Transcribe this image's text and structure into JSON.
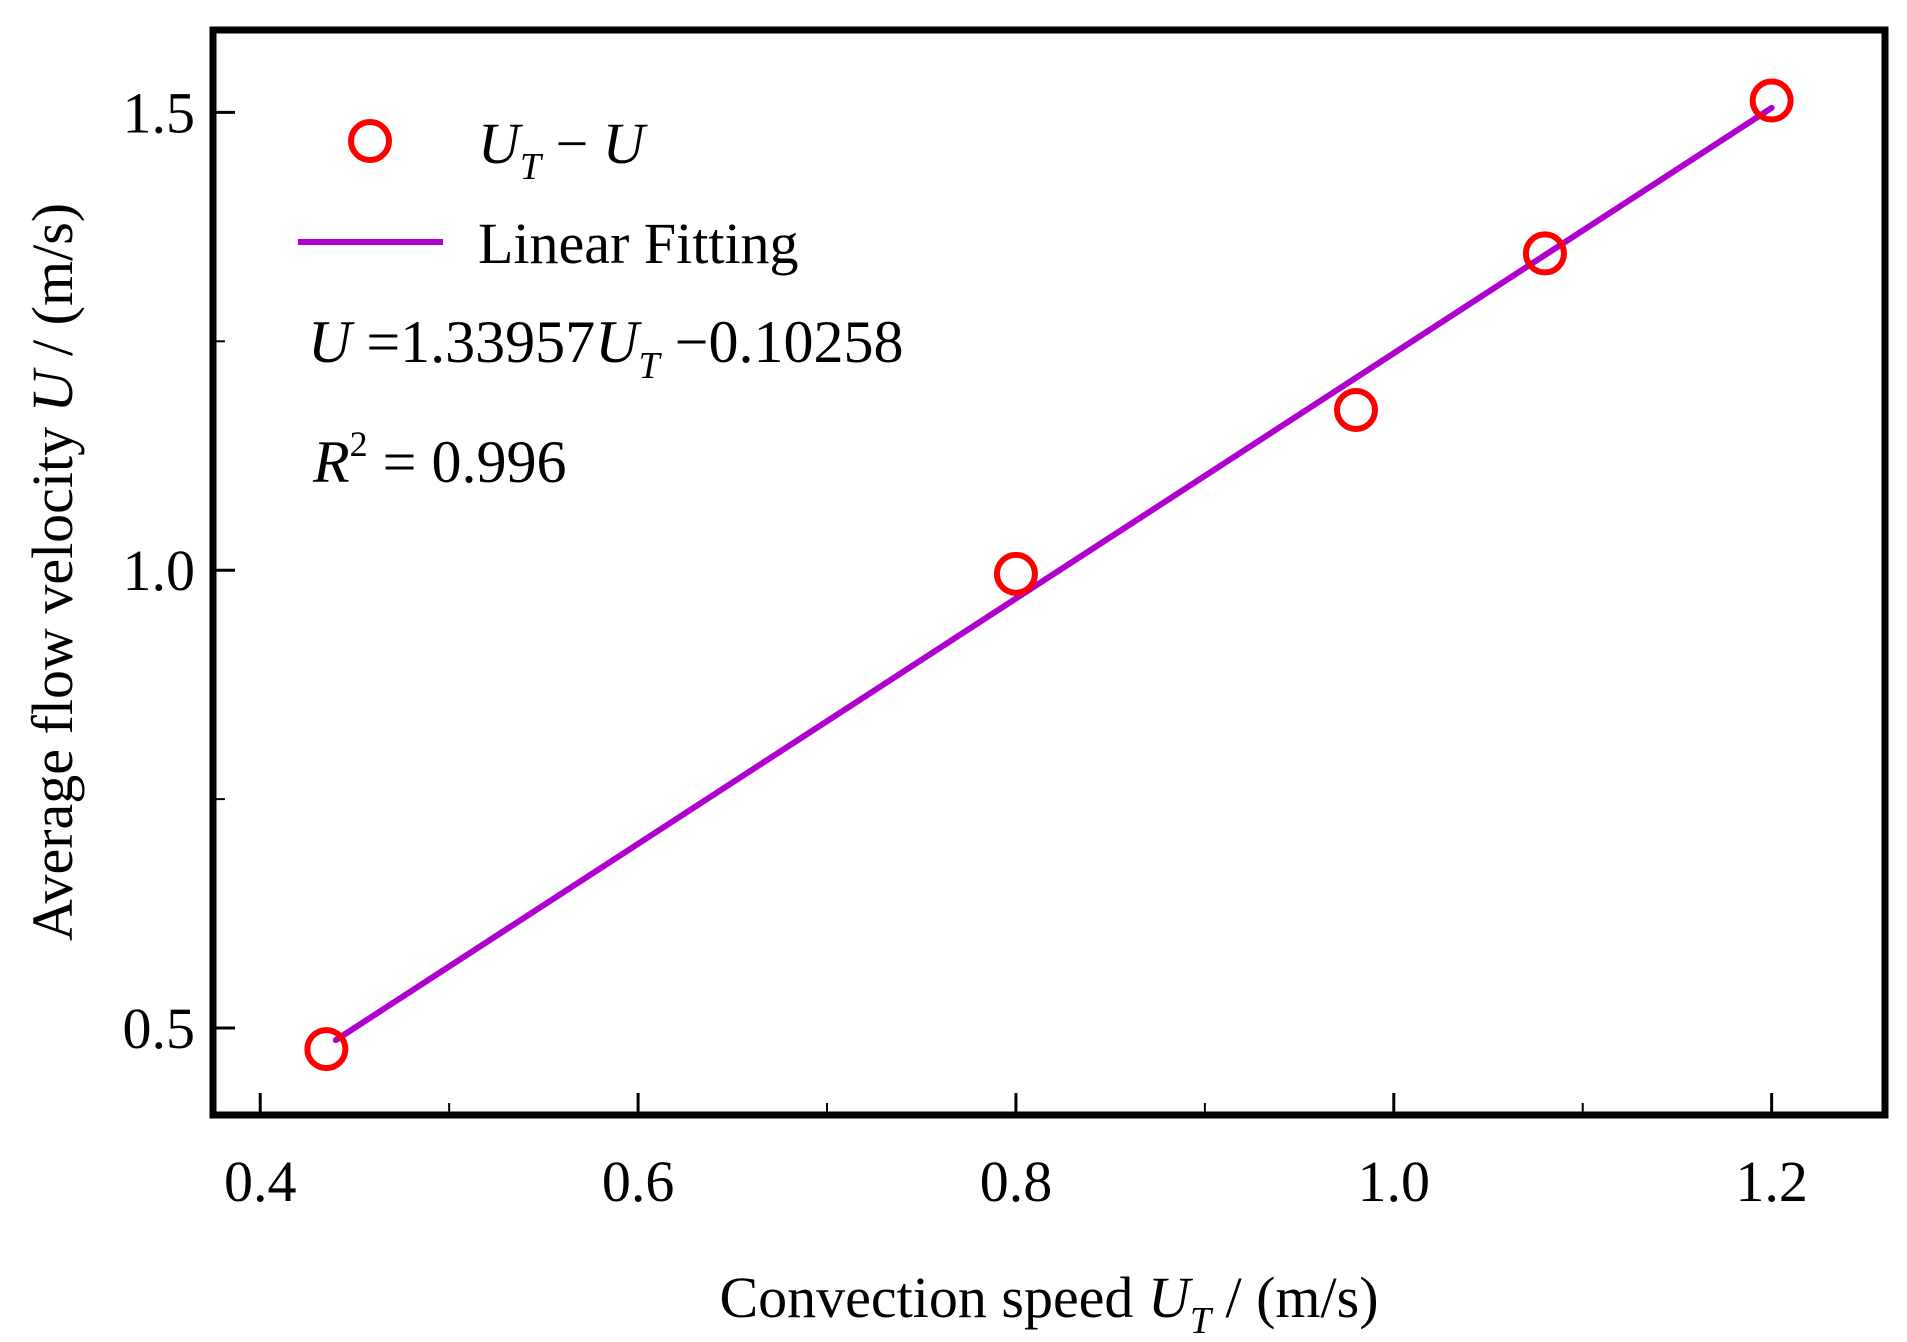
{
  "chart_data": {
    "type": "scatter",
    "xlim": [
      0.375,
      1.26
    ],
    "ylim": [
      0.405,
      1.59
    ],
    "x_ticks_major": [
      {
        "value": 0.4,
        "label": "0.4"
      },
      {
        "value": 0.6,
        "label": "0.6"
      },
      {
        "value": 0.8,
        "label": "0.8"
      },
      {
        "value": 1.0,
        "label": "1.0"
      },
      {
        "value": 1.2,
        "label": "1.2"
      }
    ],
    "x_ticks_minor": [
      0.5,
      0.7,
      0.9,
      1.1
    ],
    "y_ticks_major": [
      {
        "value": 0.5,
        "label": "0.5"
      },
      {
        "value": 1.0,
        "label": "1.0"
      },
      {
        "value": 1.5,
        "label": "1.5"
      }
    ],
    "y_ticks_minor": [
      0.75,
      1.25
    ],
    "xlabel": {
      "prefix": "Convection speed  ",
      "var": "U",
      "sub": "T",
      "suffix": " / (m/s)"
    },
    "ylabel": {
      "prefix": "Average flow velocity ",
      "var": "U",
      "suffix": " / (m/s)"
    },
    "series": [
      {
        "name": "U_T − U",
        "kind": "scatter",
        "marker": "open-circle",
        "color": "#ff0000",
        "points": [
          {
            "x": 0.435,
            "y": 0.477
          },
          {
            "x": 0.8,
            "y": 0.996
          },
          {
            "x": 0.98,
            "y": 1.175
          },
          {
            "x": 1.08,
            "y": 1.346
          },
          {
            "x": 1.2,
            "y": 1.513
          }
        ]
      },
      {
        "name": "Linear Fitting",
        "kind": "line",
        "color": "#b000d0",
        "slope": 1.33957,
        "intercept": -0.10258,
        "x_range": [
          0.44,
          1.2
        ]
      }
    ],
    "legend": {
      "position": "top-left",
      "scatter_label": {
        "var": "U",
        "sub": "T",
        "rest": " − ",
        "var2": "U"
      },
      "line_label": "Linear Fitting"
    },
    "annotations": {
      "equation": {
        "lhs": "U",
        "eq": " =1.33957",
        "var": "U",
        "sub": "T",
        "rest": " −0.10258"
      },
      "r2": {
        "var": "R",
        "sup": "2",
        "rest": " = 0.996"
      }
    }
  }
}
